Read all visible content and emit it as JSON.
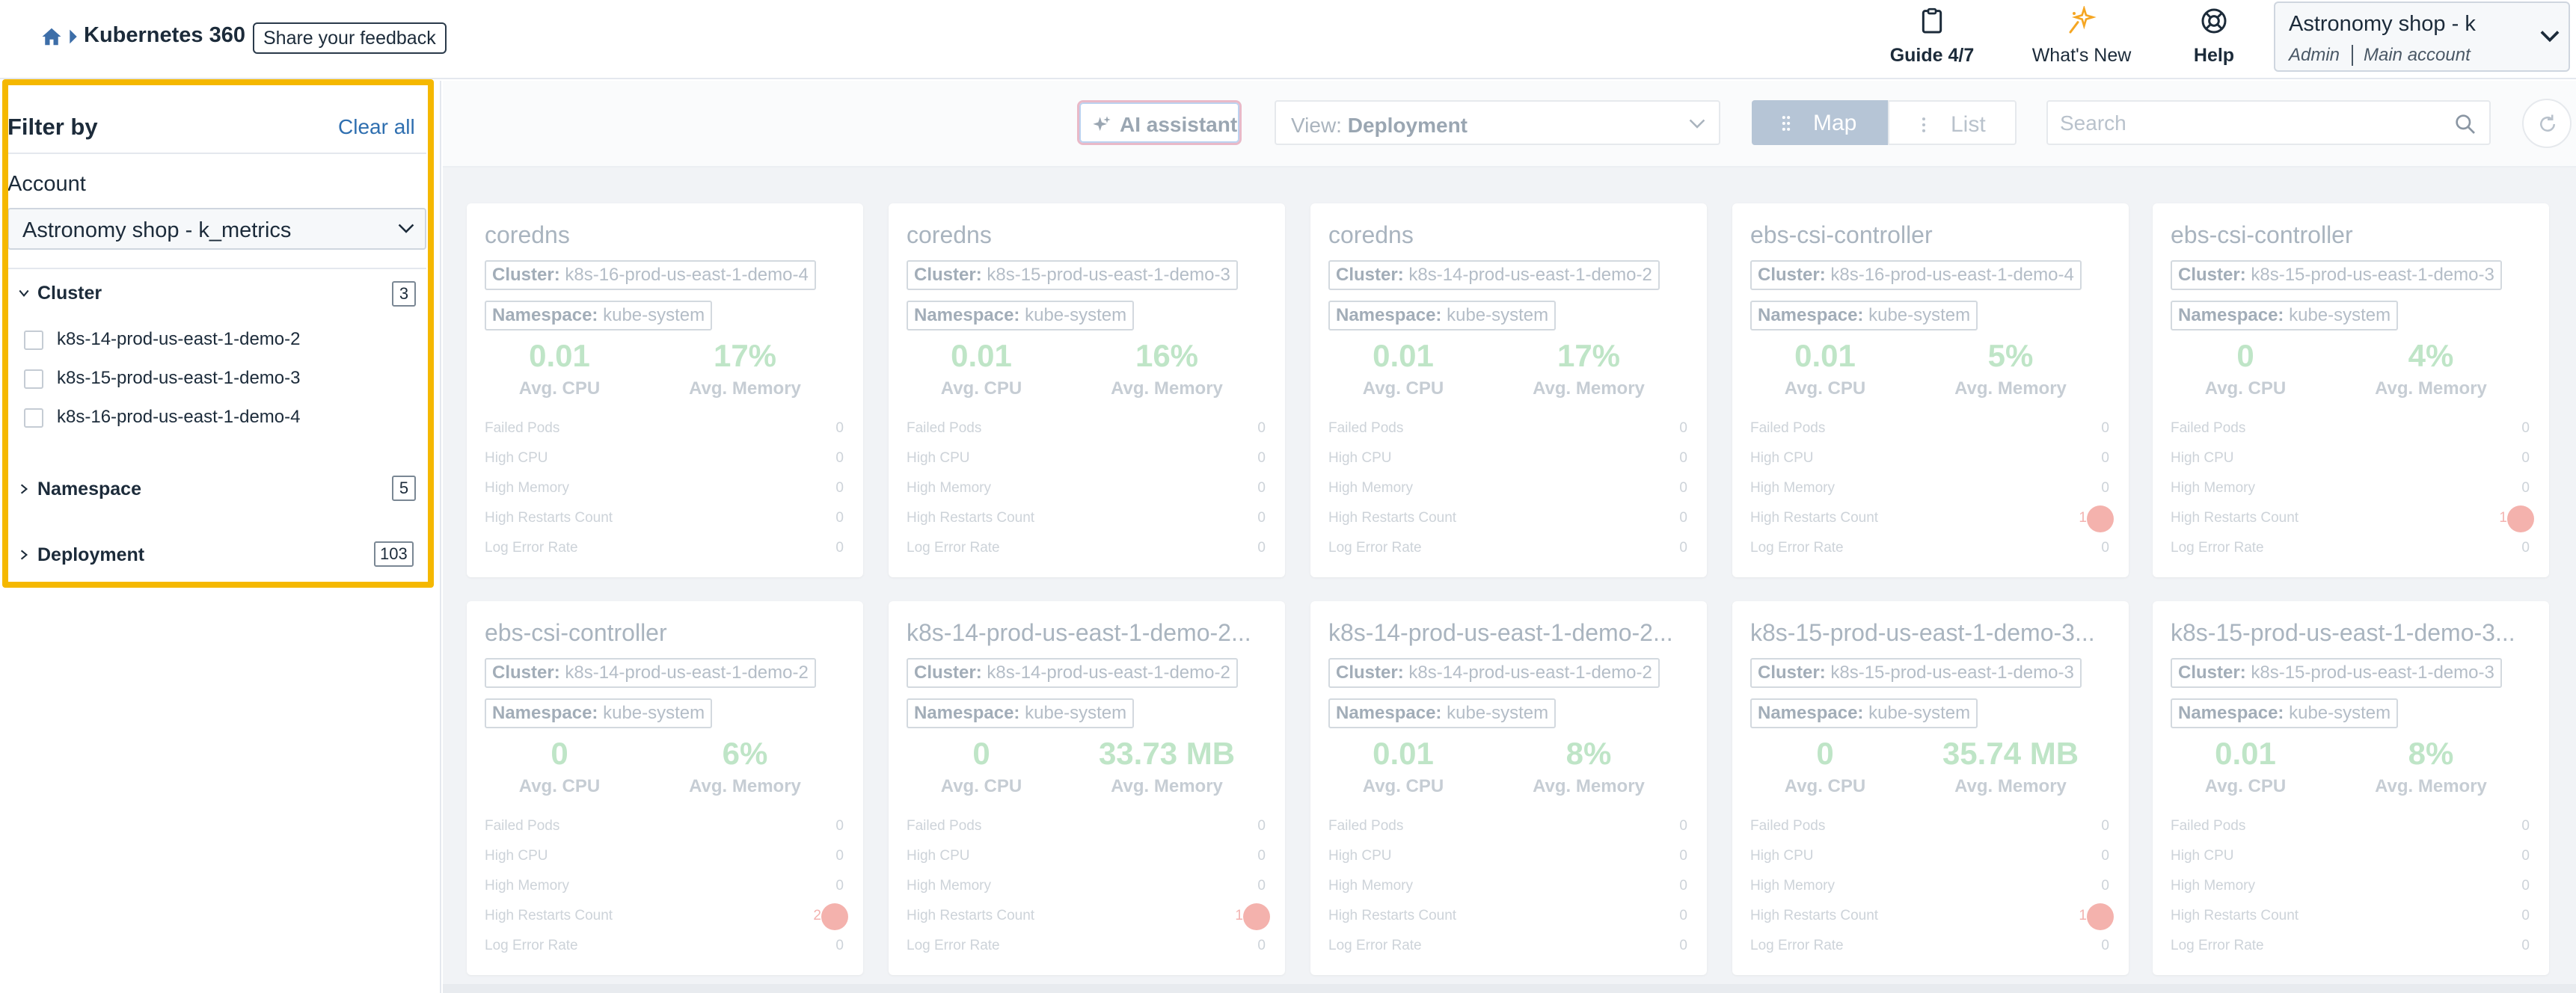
{
  "header": {
    "title": "Kubernetes 360",
    "feedback_label": "Share your feedback",
    "guide_label": "Guide 4/7",
    "whats_new_label": "What's New",
    "help_label": "Help",
    "account": {
      "name": "Astronomy shop - k",
      "role": "Admin",
      "sub": "Main account"
    }
  },
  "sidebar": {
    "filter_by": "Filter by",
    "clear_all": "Clear all",
    "account_label": "Account",
    "account_value": "Astronomy shop - k_metrics",
    "cluster": {
      "label": "Cluster",
      "count": "3",
      "options": [
        "k8s-14-prod-us-east-1-demo-2",
        "k8s-15-prod-us-east-1-demo-3",
        "k8s-16-prod-us-east-1-demo-4"
      ]
    },
    "namespace": {
      "label": "Namespace",
      "count": "5"
    },
    "deployment": {
      "label": "Deployment",
      "count": "103"
    }
  },
  "toolbar": {
    "ai_label": "AI assistant",
    "view_prefix": "View:",
    "view_value": "Deployment",
    "map_label": "Map",
    "list_label": "List",
    "search_placeholder": "Search"
  },
  "labels": {
    "cluster": "Cluster:",
    "namespace": "Namespace:",
    "avg_cpu": "Avg. CPU",
    "avg_memory": "Avg. Memory",
    "failed_pods": "Failed Pods",
    "high_cpu": "High CPU",
    "high_memory": "High Memory",
    "high_restarts": "High Restarts Count",
    "log_error_rate": "Log Error Rate"
  },
  "cards": [
    {
      "title": "coredns",
      "cluster": "k8s-16-prod-us-east-1-demo-4",
      "namespace": "kube-system",
      "cpu": "0.01",
      "memory": "17%",
      "failed_pods": "0",
      "high_cpu": "0",
      "high_memory": "0",
      "restarts": "0",
      "restart_badge": "",
      "log_error_rate": "0"
    },
    {
      "title": "coredns",
      "cluster": "k8s-15-prod-us-east-1-demo-3",
      "namespace": "kube-system",
      "cpu": "0.01",
      "memory": "16%",
      "failed_pods": "0",
      "high_cpu": "0",
      "high_memory": "0",
      "restarts": "0",
      "restart_badge": "",
      "log_error_rate": "0"
    },
    {
      "title": "coredns",
      "cluster": "k8s-14-prod-us-east-1-demo-2",
      "namespace": "kube-system",
      "cpu": "0.01",
      "memory": "17%",
      "failed_pods": "0",
      "high_cpu": "0",
      "high_memory": "0",
      "restarts": "0",
      "restart_badge": "",
      "log_error_rate": "0"
    },
    {
      "title": "ebs-csi-controller",
      "cluster": "k8s-16-prod-us-east-1-demo-4",
      "namespace": "kube-system",
      "cpu": "0.01",
      "memory": "5%",
      "failed_pods": "0",
      "high_cpu": "0",
      "high_memory": "0",
      "restarts": "",
      "restart_badge": "1",
      "log_error_rate": "0"
    },
    {
      "title": "ebs-csi-controller",
      "cluster": "k8s-15-prod-us-east-1-demo-3",
      "namespace": "kube-system",
      "cpu": "0",
      "memory": "4%",
      "failed_pods": "0",
      "high_cpu": "0",
      "high_memory": "0",
      "restarts": "",
      "restart_badge": "1",
      "log_error_rate": "0"
    },
    {
      "title": "ebs-csi-controller",
      "cluster": "k8s-14-prod-us-east-1-demo-2",
      "namespace": "kube-system",
      "cpu": "0",
      "memory": "6%",
      "failed_pods": "0",
      "high_cpu": "0",
      "high_memory": "0",
      "restarts": "",
      "restart_badge": "2",
      "log_error_rate": "0"
    },
    {
      "title": "k8s-14-prod-us-east-1-demo-2...",
      "cluster": "k8s-14-prod-us-east-1-demo-2",
      "namespace": "kube-system",
      "cpu": "0",
      "memory": "33.73 MB",
      "failed_pods": "0",
      "high_cpu": "0",
      "high_memory": "0",
      "restarts": "",
      "restart_badge": "1",
      "log_error_rate": "0"
    },
    {
      "title": "k8s-14-prod-us-east-1-demo-2...",
      "cluster": "k8s-14-prod-us-east-1-demo-2",
      "namespace": "kube-system",
      "cpu": "0.01",
      "memory": "8%",
      "failed_pods": "0",
      "high_cpu": "0",
      "high_memory": "0",
      "restarts": "0",
      "restart_badge": "",
      "log_error_rate": "0"
    },
    {
      "title": "k8s-15-prod-us-east-1-demo-3...",
      "cluster": "k8s-15-prod-us-east-1-demo-3",
      "namespace": "kube-system",
      "cpu": "0",
      "memory": "35.74 MB",
      "failed_pods": "0",
      "high_cpu": "0",
      "high_memory": "0",
      "restarts": "",
      "restart_badge": "1",
      "log_error_rate": "0"
    },
    {
      "title": "k8s-15-prod-us-east-1-demo-3...",
      "cluster": "k8s-15-prod-us-east-1-demo-3",
      "namespace": "kube-system",
      "cpu": "0.01",
      "memory": "8%",
      "failed_pods": "0",
      "high_cpu": "0",
      "high_memory": "0",
      "restarts": "0",
      "restart_badge": "",
      "log_error_rate": "0"
    }
  ],
  "colors": {
    "accent": "#2f6fb0",
    "highlight": "#f5b800",
    "metric_value": "#bfe5c7",
    "restart_badge": "#f4b2ad"
  },
  "icons": [
    "home-icon",
    "clipboard-icon",
    "sparkle-icon",
    "lifebuoy-icon",
    "chevron-down-icon",
    "chevron-right-icon",
    "search-icon",
    "refresh-icon",
    "grid-icon",
    "list-icon"
  ]
}
